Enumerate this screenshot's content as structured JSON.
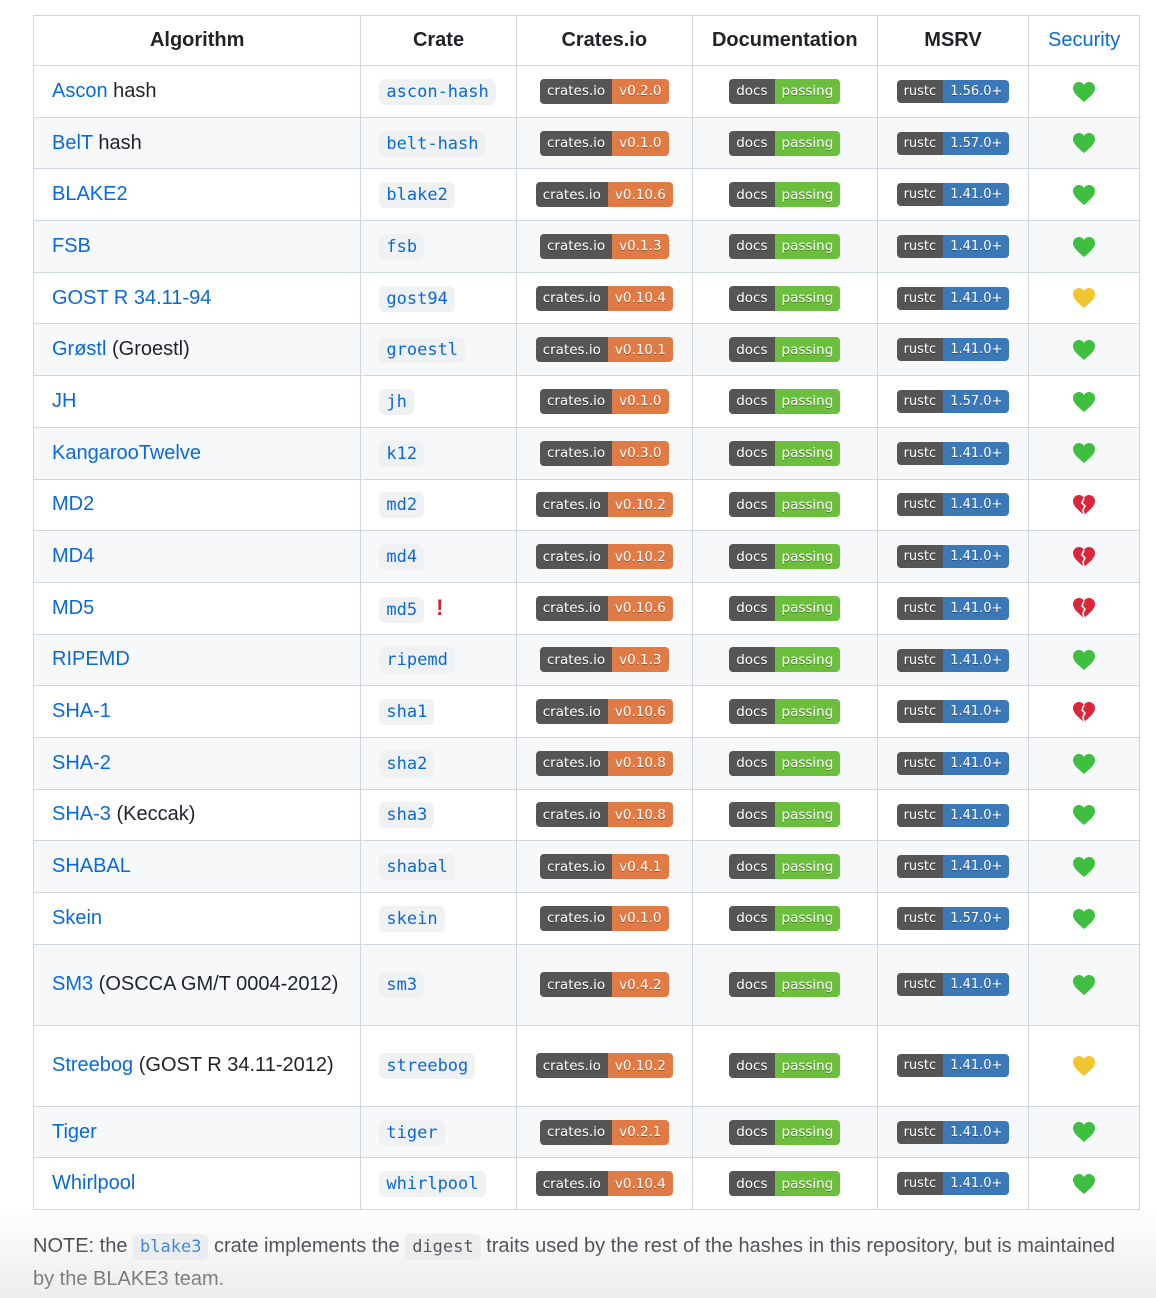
{
  "headers": [
    "Algorithm",
    "Crate",
    "Crates.io",
    "Documentation",
    "MSRV",
    "Security"
  ],
  "badge_labels": {
    "crates": "crates.io",
    "docs": "docs",
    "docs_status": "passing",
    "msrv": "rustc"
  },
  "colors": {
    "crates": "#e07b45",
    "docs": "#6cbf3c",
    "msrv": "#3b78b8",
    "green": "#3fbf3f",
    "yellow": "#f2c62f",
    "broken": "#d9263a",
    "link": "#0969da"
  },
  "rows": [
    {
      "name": "Ascon",
      "suffix": " hash",
      "crate": "ascon-hash",
      "version": "v0.2.0",
      "msrv": "1.56.0+",
      "security": "green"
    },
    {
      "name": "BelT",
      "suffix": " hash",
      "crate": "belt-hash",
      "version": "v0.1.0",
      "msrv": "1.57.0+",
      "security": "green"
    },
    {
      "name": "BLAKE2",
      "suffix": "",
      "crate": "blake2",
      "version": "v0.10.6",
      "msrv": "1.41.0+",
      "security": "green"
    },
    {
      "name": "FSB",
      "suffix": "",
      "crate": "fsb",
      "version": "v0.1.3",
      "msrv": "1.41.0+",
      "security": "green"
    },
    {
      "name": "GOST R 34.11-94",
      "suffix": "",
      "crate": "gost94",
      "version": "v0.10.4",
      "msrv": "1.41.0+",
      "security": "yellow"
    },
    {
      "name": "Grøstl",
      "suffix": " (Groestl)",
      "crate": "groestl",
      "version": "v0.10.1",
      "msrv": "1.41.0+",
      "security": "green"
    },
    {
      "name": "JH",
      "suffix": "",
      "crate": "jh",
      "version": "v0.1.0",
      "msrv": "1.57.0+",
      "security": "green"
    },
    {
      "name": "KangarooTwelve",
      "suffix": "",
      "crate": "k12",
      "version": "v0.3.0",
      "msrv": "1.41.0+",
      "security": "green"
    },
    {
      "name": "MD2",
      "suffix": "",
      "crate": "md2",
      "version": "v0.10.2",
      "msrv": "1.41.0+",
      "security": "broken"
    },
    {
      "name": "MD4",
      "suffix": "",
      "crate": "md4",
      "version": "v0.10.2",
      "msrv": "1.41.0+",
      "security": "broken"
    },
    {
      "name": "MD5",
      "suffix": "",
      "crate": "md5",
      "warning": "!",
      "version": "v0.10.6",
      "msrv": "1.41.0+",
      "security": "broken"
    },
    {
      "name": "RIPEMD",
      "suffix": "",
      "crate": "ripemd",
      "version": "v0.1.3",
      "msrv": "1.41.0+",
      "security": "green"
    },
    {
      "name": "SHA-1",
      "suffix": "",
      "crate": "sha1",
      "version": "v0.10.6",
      "msrv": "1.41.0+",
      "security": "broken"
    },
    {
      "name": "SHA-2",
      "suffix": "",
      "crate": "sha2",
      "version": "v0.10.8",
      "msrv": "1.41.0+",
      "security": "green"
    },
    {
      "name": "SHA-3",
      "suffix": " (Keccak)",
      "crate": "sha3",
      "version": "v0.10.8",
      "msrv": "1.41.0+",
      "security": "green"
    },
    {
      "name": "SHABAL",
      "suffix": "",
      "crate": "shabal",
      "version": "v0.4.1",
      "msrv": "1.41.0+",
      "security": "green"
    },
    {
      "name": "Skein",
      "suffix": "",
      "crate": "skein",
      "version": "v0.1.0",
      "msrv": "1.57.0+",
      "security": "green"
    },
    {
      "name": "SM3",
      "suffix": " (OSCCA GM/T 0004-2012)",
      "crate": "sm3",
      "version": "v0.4.2",
      "msrv": "1.41.0+",
      "security": "green",
      "tall": true
    },
    {
      "name": "Streebog",
      "suffix": " (GOST R 34.11-2012)",
      "crate": "streebog",
      "version": "v0.10.2",
      "msrv": "1.41.0+",
      "security": "yellow",
      "tall": true
    },
    {
      "name": "Tiger",
      "suffix": "",
      "crate": "tiger",
      "version": "v0.2.1",
      "msrv": "1.41.0+",
      "security": "green"
    },
    {
      "name": "Whirlpool",
      "suffix": "",
      "crate": "whirlpool",
      "version": "v0.10.4",
      "msrv": "1.41.0+",
      "security": "green"
    }
  ],
  "note": {
    "prefix": "NOTE: the ",
    "crate": "blake3",
    "middle": " crate implements the ",
    "trait": "digest",
    "suffix": " traits used by the rest of the hashes in this repository, but is maintained by the BLAKE3 team."
  }
}
